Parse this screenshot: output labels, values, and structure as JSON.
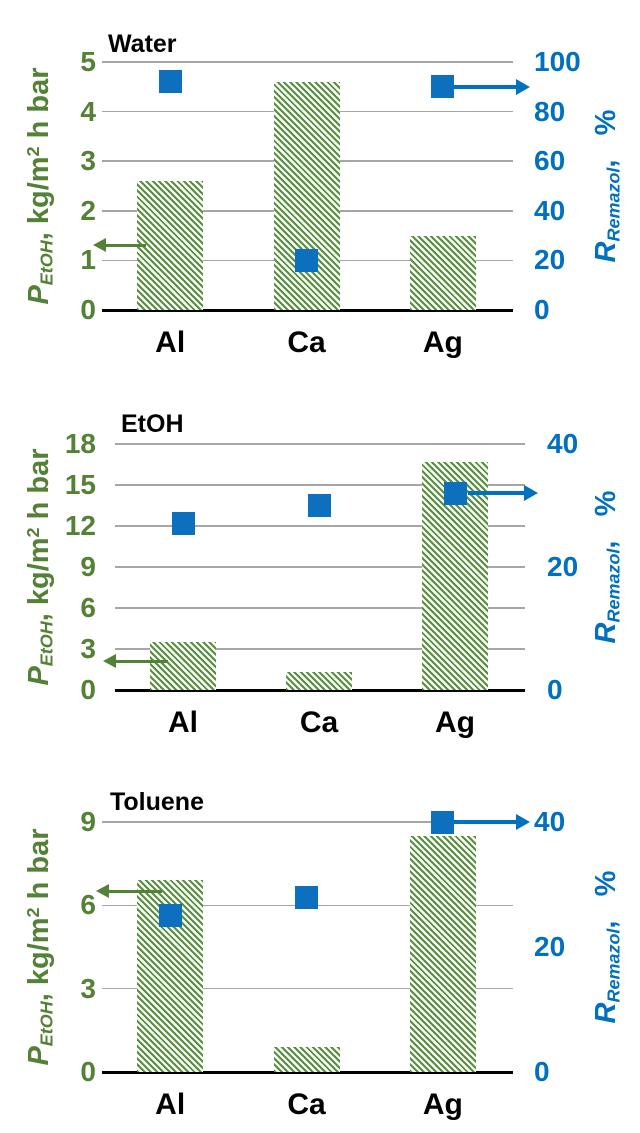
{
  "colors": {
    "green_accent": "#538135",
    "bar_hatch_green": "#55913A",
    "blue_accent": "#0070C0",
    "gridline_gray": "#A6A6A6",
    "axis_baseline_black": "#000000",
    "title_black": "#000000",
    "background": "#FFFFFF"
  },
  "chart_data": [
    {
      "type": "bar",
      "title": "Water",
      "categories": [
        "Al",
        "Ca",
        "Ag"
      ],
      "series": [
        {
          "name": "P_EtOH",
          "type": "bar",
          "axis": "left",
          "style": "green-diagonal-hatch",
          "values": [
            2.6,
            4.6,
            1.5
          ]
        },
        {
          "name": "R_Remazol",
          "type": "scatter",
          "axis": "right",
          "marker": "blue-square",
          "values": [
            92,
            20,
            90
          ]
        }
      ],
      "left_axis": {
        "label": "P_EtOH, kg/m2 h bar",
        "label_parts": {
          "sym": "P",
          "sub": "EtOH",
          "mid": ", kg/m",
          "sup": "2",
          "tail": " h bar"
        },
        "range": [
          0,
          5
        ],
        "ticks": [
          5,
          4,
          3,
          2,
          1,
          0
        ]
      },
      "right_axis": {
        "label": "R_Remazol, %",
        "label_parts": {
          "sym": "R",
          "sub": "Remazol",
          "tail": ",   %"
        },
        "range": [
          0,
          100
        ],
        "ticks": [
          100,
          80,
          60,
          40,
          20,
          0
        ]
      },
      "grid": true,
      "legend_position": "none",
      "annotations": {
        "left_axis_arrow_at_value": 1.3,
        "right_axis_arrow_at_category": "Ag"
      }
    },
    {
      "type": "bar",
      "title": "EtOH",
      "categories": [
        "Al",
        "Ca",
        "Ag"
      ],
      "series": [
        {
          "name": "P_EtOH",
          "type": "bar",
          "axis": "left",
          "style": "green-diagonal-hatch",
          "values": [
            3.5,
            1.3,
            16.7
          ]
        },
        {
          "name": "R_Remazol",
          "type": "scatter",
          "axis": "right",
          "marker": "blue-square",
          "values": [
            27,
            30,
            32
          ]
        }
      ],
      "left_axis": {
        "label": "P_EtOH, kg/m2 h bar",
        "label_parts": {
          "sym": "P",
          "sub": "EtOH",
          "mid": ", kg/m",
          "sup": "2",
          "tail": " h bar"
        },
        "range": [
          0,
          18
        ],
        "ticks": [
          18,
          15,
          12,
          9,
          6,
          3,
          0
        ]
      },
      "right_axis": {
        "label": "R_Remazol, %",
        "label_parts": {
          "sym": "R",
          "sub": "Remazol",
          "tail": ",   %"
        },
        "range": [
          0,
          40
        ],
        "ticks": [
          40,
          20,
          0
        ]
      },
      "grid": true,
      "legend_position": "none",
      "annotations": {
        "left_axis_arrow_at_value": 2.1,
        "right_axis_arrow_at_category": "Ag"
      }
    },
    {
      "type": "bar",
      "title": "Toluene",
      "categories": [
        "Al",
        "Ca",
        "Ag"
      ],
      "series": [
        {
          "name": "P_EtOH",
          "type": "bar",
          "axis": "left",
          "style": "green-diagonal-hatch",
          "values": [
            6.9,
            0.9,
            8.5
          ]
        },
        {
          "name": "R_Remazol",
          "type": "scatter",
          "axis": "right",
          "marker": "blue-square",
          "values": [
            25,
            28,
            40
          ]
        }
      ],
      "left_axis": {
        "label": "P_EtOH, kg/m2 h bar",
        "label_parts": {
          "sym": "P",
          "sub": "EtOH",
          "mid": ", kg/m",
          "sup": "2",
          "tail": " h bar"
        },
        "range": [
          0,
          9
        ],
        "ticks": [
          9,
          6,
          3,
          0
        ]
      },
      "right_axis": {
        "label": "R_Remazol, %",
        "label_parts": {
          "sym": "R",
          "sub": "Remazol",
          "tail": ",   %"
        },
        "range": [
          0,
          40
        ],
        "ticks": [
          40,
          20,
          0
        ]
      },
      "grid": true,
      "legend_position": "none",
      "annotations": {
        "left_axis_arrow_at_value": 6.5,
        "right_axis_arrow_at_category": "Ag"
      }
    }
  ]
}
